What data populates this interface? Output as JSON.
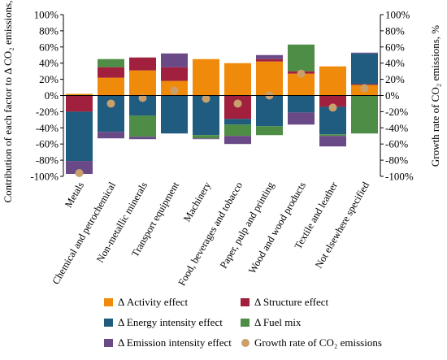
{
  "chart_data": {
    "type": "bar",
    "stacked": true,
    "categories": [
      "Metals",
      "Chemical and petrochemical",
      "Non-metallic minerals",
      "Transport equipment",
      "Machinery",
      "Food, beverages and tobacco",
      "Paper, pulp and printing",
      "Wood and wood products",
      "Textile and leather",
      "Not elsewhere specified"
    ],
    "ylabel": "Contribution of each factor to Δ CO₂ emissions, %",
    "y2label": "Growth rate of CO₂ emissions, %",
    "ylim": [
      -100,
      100
    ],
    "y2lim": [
      -100,
      100
    ],
    "yticks": [
      "100%",
      "80%",
      "60%",
      "40%",
      "20%",
      "0%",
      "-20%",
      "-40%",
      "-60%",
      "-80%",
      "-100%"
    ],
    "grid": false,
    "legend_position": "bottom",
    "series": [
      {
        "name": "Δ Activity effect",
        "color": "#F08A0B",
        "kind": "bar",
        "values": [
          2,
          22,
          31,
          18,
          45,
          40,
          42,
          27,
          36,
          13
        ]
      },
      {
        "name": "Δ Structure effect",
        "color": "#A0203D",
        "kind": "bar",
        "values": [
          -20,
          13,
          16,
          17,
          0,
          -29,
          3,
          3,
          -14,
          1
        ]
      },
      {
        "name": "Δ Energy intensity effect",
        "color": "#1F5C80",
        "kind": "bar",
        "values": [
          -61,
          -45,
          -25,
          -47,
          -49,
          -7,
          -38,
          -21,
          -34,
          38
        ]
      },
      {
        "name": "Δ Fuel mix",
        "color": "#4E8D45",
        "kind": "bar",
        "values": [
          0,
          10,
          -26,
          0,
          -4,
          -14,
          -11,
          33,
          -2,
          -47
        ]
      },
      {
        "name": "Δ Emission intensity effect",
        "color": "#6A4A86",
        "kind": "bar",
        "values": [
          -16,
          -8,
          -3,
          17,
          -1,
          -10,
          5,
          -15,
          -13,
          1
        ]
      },
      {
        "name": "Growth rate of CO₂ emissions",
        "color": "#C9A06B",
        "kind": "point",
        "values": [
          -96,
          -10,
          -3,
          6,
          -4,
          -10,
          0,
          27,
          -15,
          9
        ]
      }
    ]
  }
}
